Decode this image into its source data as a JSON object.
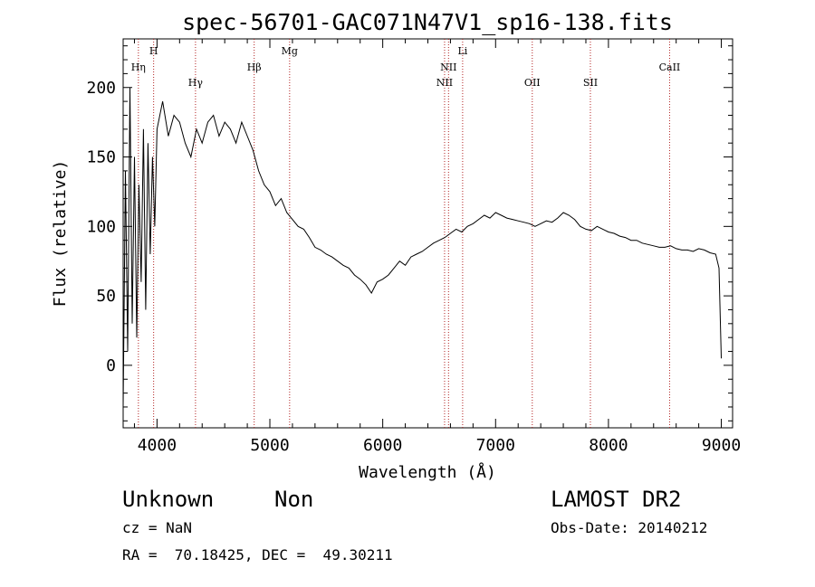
{
  "chart_data": {
    "type": "line",
    "title": "spec-56701-GAC071N47V1_sp16-138.fits",
    "xlabel": "Wavelength (Å)",
    "ylabel": "Flux (relative)",
    "xlim": [
      3700,
      9100
    ],
    "ylim": [
      -45,
      235
    ],
    "x_ticks": [
      4000,
      5000,
      6000,
      7000,
      8000,
      9000
    ],
    "y_ticks": [
      0,
      50,
      100,
      150,
      200
    ],
    "grid": false,
    "series": [
      {
        "x": [
          3700,
          3720,
          3740,
          3760,
          3780,
          3800,
          3820,
          3840,
          3860,
          3880,
          3900,
          3920,
          3940,
          3960,
          3980,
          4000,
          4050,
          4100,
          4150,
          4200,
          4250,
          4300,
          4350,
          4400,
          4450,
          4500,
          4550,
          4600,
          4650,
          4700,
          4750,
          4800,
          4850,
          4900,
          4950,
          5000,
          5050,
          5100,
          5150,
          5200,
          5250,
          5300,
          5350,
          5400,
          5450,
          5500,
          5550,
          5600,
          5650,
          5700,
          5750,
          5800,
          5850,
          5900,
          5950,
          6000,
          6050,
          6100,
          6150,
          6200,
          6250,
          6300,
          6350,
          6400,
          6450,
          6500,
          6550,
          6600,
          6650,
          6700,
          6750,
          6800,
          6850,
          6900,
          6950,
          7000,
          7050,
          7100,
          7150,
          7200,
          7250,
          7300,
          7350,
          7400,
          7450,
          7500,
          7550,
          7600,
          7650,
          7700,
          7750,
          7800,
          7850,
          7900,
          7950,
          8000,
          8050,
          8100,
          8150,
          8200,
          8250,
          8300,
          8350,
          8400,
          8450,
          8500,
          8550,
          8600,
          8650,
          8700,
          8750,
          8800,
          8850,
          8900,
          8950,
          8980,
          9000
        ],
        "values": [
          -30,
          140,
          10,
          200,
          30,
          150,
          20,
          130,
          60,
          170,
          40,
          160,
          80,
          150,
          100,
          170,
          190,
          165,
          180,
          175,
          160,
          150,
          170,
          160,
          175,
          180,
          165,
          175,
          170,
          160,
          175,
          165,
          155,
          140,
          130,
          125,
          115,
          120,
          110,
          105,
          100,
          98,
          92,
          85,
          83,
          80,
          78,
          75,
          72,
          70,
          65,
          62,
          58,
          52,
          60,
          62,
          65,
          70,
          75,
          72,
          78,
          80,
          82,
          85,
          88,
          90,
          92,
          95,
          98,
          96,
          100,
          102,
          105,
          108,
          106,
          110,
          108,
          106,
          105,
          104,
          103,
          102,
          100,
          102,
          104,
          103,
          106,
          110,
          108,
          105,
          100,
          98,
          97,
          100,
          98,
          96,
          95,
          93,
          92,
          90,
          90,
          88,
          87,
          86,
          85,
          85,
          86,
          84,
          83,
          83,
          82,
          84,
          83,
          81,
          80,
          70,
          5
        ]
      }
    ],
    "line_labels": [
      {
        "label": "Hη",
        "x": 3835,
        "row": 2
      },
      {
        "label": "H",
        "x": 3970,
        "row": 1
      },
      {
        "label": "Hγ",
        "x": 4341,
        "row": 3
      },
      {
        "label": "Hβ",
        "x": 4861,
        "row": 2
      },
      {
        "label": "Mg",
        "x": 5175,
        "row": 1
      },
      {
        "label": "NII",
        "x": 6548,
        "row": 3
      },
      {
        "label": "NII",
        "x": 6583,
        "row": 2
      },
      {
        "label": "Li",
        "x": 6708,
        "row": 1
      },
      {
        "label": "OII",
        "x": 7325,
        "row": 3
      },
      {
        "label": "SII",
        "x": 7840,
        "row": 3
      },
      {
        "label": "CaII",
        "x": 8542,
        "row": 2
      }
    ]
  },
  "footer": {
    "object_type": "Unknown",
    "object_class": "Non",
    "survey": "LAMOST DR2",
    "cz": "cz = NaN",
    "obs_date": "Obs-Date: 20140212",
    "coords": "RA =  70.18425, DEC =  49.30211"
  }
}
